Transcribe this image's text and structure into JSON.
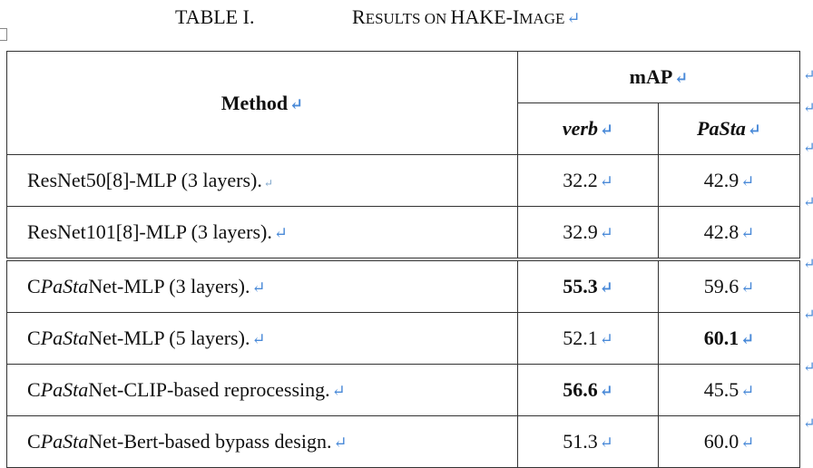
{
  "caption": {
    "label": "TABLE I.",
    "title_first": "R",
    "title_small1": "ESULTS ON ",
    "title_mid": "HAKE-I",
    "title_small2": "MAGE"
  },
  "table": {
    "header": {
      "method": "Method",
      "map": "mAP",
      "verb": "verb",
      "pasta": "PaSta"
    },
    "rows": [
      {
        "prefix": "ResNet50[8]-MLP (3 layers).",
        "ital": "",
        "suffix": "",
        "verb": "32.2",
        "pasta": "42.9",
        "verb_bold": false,
        "pasta_bold": false
      },
      {
        "prefix": "ResNet101[8]-MLP (3 layers).",
        "ital": "",
        "suffix": "",
        "verb": "32.9",
        "pasta": "42.8",
        "verb_bold": false,
        "pasta_bold": false
      },
      {
        "prefix": "C",
        "ital": "PaSta",
        "suffix": "Net-MLP (3 layers).",
        "verb": "55.3",
        "pasta": "59.6",
        "verb_bold": true,
        "pasta_bold": false
      },
      {
        "prefix": "C",
        "ital": "PaSta",
        "suffix": "Net-MLP (5 layers).",
        "verb": "52.1",
        "pasta": "60.1",
        "verb_bold": false,
        "pasta_bold": true
      },
      {
        "prefix": "C",
        "ital": "PaSta",
        "suffix": "Net-CLIP-based reprocessing.",
        "verb": "56.6",
        "pasta": "45.5",
        "verb_bold": true,
        "pasta_bold": false
      },
      {
        "prefix": "C",
        "ital": "PaSta",
        "suffix": "Net-Bert-based bypass design.",
        "verb": "51.3",
        "pasta": "60.0",
        "verb_bold": false,
        "pasta_bold": false
      }
    ]
  }
}
